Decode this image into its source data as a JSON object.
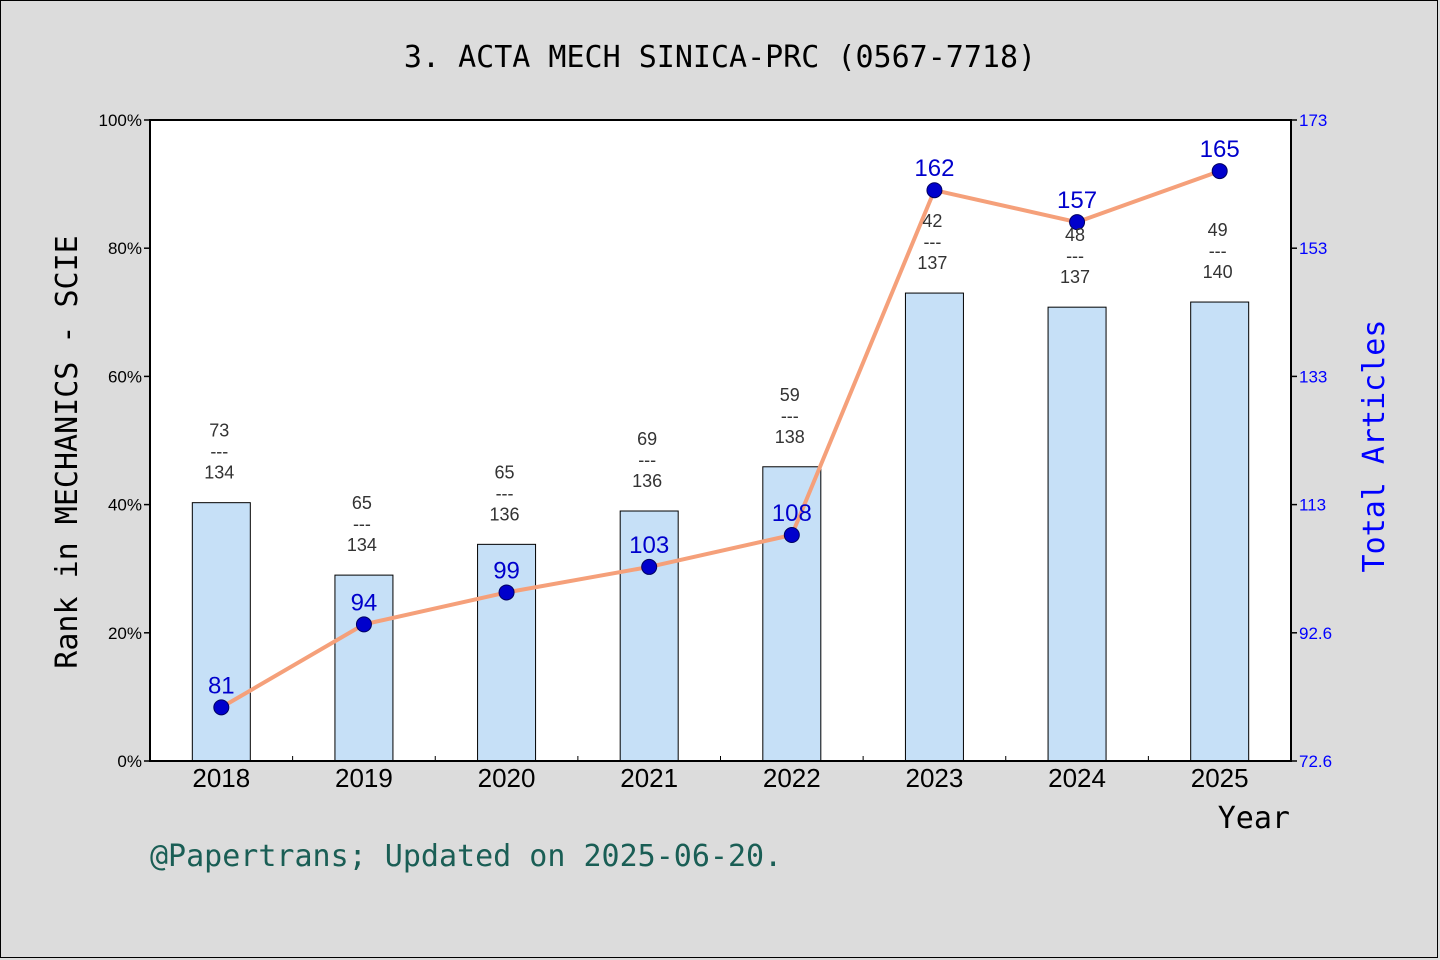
{
  "chart_data": {
    "type": "bar",
    "title": "3. ACTA MECH SINICA-PRC (0567-7718)",
    "xlabel": "Year",
    "ylabel": "Rank in MECHANICS - SCIE",
    "y2label": "Total Articles",
    "categories": [
      "2018",
      "2019",
      "2020",
      "2021",
      "2022",
      "2023",
      "2024",
      "2025"
    ],
    "ylim": [
      0,
      100
    ],
    "yticks": [
      "0%",
      "20%",
      "40%",
      "60%",
      "80%",
      "100%"
    ],
    "y2lim": [
      72.6,
      173
    ],
    "y2ticks": [
      "72.6",
      "92.6",
      "113",
      "133",
      "153",
      "173"
    ],
    "rank": [
      73,
      65,
      65,
      69,
      59,
      42,
      48,
      49
    ],
    "rank_total": [
      134,
      134,
      136,
      136,
      138,
      137,
      137,
      140
    ],
    "rank_divider": "---",
    "series": [
      {
        "name": "Rank in MECHANICS - SCIE",
        "kind": "bar",
        "values": [
          40.3,
          29.0,
          33.8,
          39.0,
          45.9,
          73.0,
          70.8,
          71.6
        ]
      },
      {
        "name": "Total Articles",
        "kind": "line",
        "values": [
          81,
          94,
          99,
          103,
          108,
          162,
          157,
          165
        ]
      }
    ],
    "value_labels": [
      "81",
      "94",
      "99",
      "103",
      "108",
      "162",
      "157",
      "165"
    ],
    "grid": false,
    "colors": {
      "bar_fill": "#c6e0f7",
      "bar_edge": "#000000",
      "line": "#f5a07a",
      "marker": "#0000cc",
      "right_axis": "#0000ff"
    }
  },
  "footer": "@Papertrans; Updated on 2025-06-20."
}
